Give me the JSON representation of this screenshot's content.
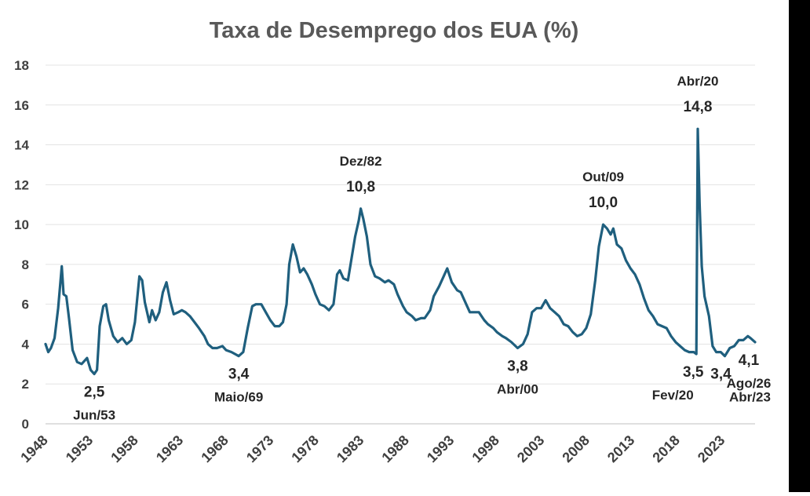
{
  "chart_data": {
    "type": "line",
    "title": "Taxa de Desemprego dos EUA (%)",
    "xlabel": "",
    "ylabel": "",
    "ylim": [
      0,
      18
    ],
    "yticks": [
      "0",
      "2",
      "4",
      "6",
      "8",
      "10",
      "12",
      "14",
      "16",
      "18"
    ],
    "xticks": [
      "1948",
      "1953",
      "1958",
      "1963",
      "1968",
      "1973",
      "1978",
      "1983",
      "1988",
      "1993",
      "1998",
      "2003",
      "2008",
      "2013",
      "2018",
      "2023"
    ],
    "xlim": [
      1948,
      2026.6
    ],
    "grid": "horizontal",
    "legend": "none",
    "line_color": "#1f5f7e",
    "series": [
      {
        "points": [
          [
            1948.0,
            4.0
          ],
          [
            1948.3,
            3.6
          ],
          [
            1948.6,
            3.8
          ],
          [
            1949.0,
            4.3
          ],
          [
            1949.4,
            5.8
          ],
          [
            1949.8,
            7.9
          ],
          [
            1950.0,
            6.5
          ],
          [
            1950.3,
            6.4
          ],
          [
            1950.6,
            5.3
          ],
          [
            1951.0,
            3.7
          ],
          [
            1951.5,
            3.1
          ],
          [
            1952.0,
            3.0
          ],
          [
            1952.6,
            3.3
          ],
          [
            1953.0,
            2.7
          ],
          [
            1953.4,
            2.5
          ],
          [
            1953.7,
            2.7
          ],
          [
            1954.0,
            4.9
          ],
          [
            1954.4,
            5.9
          ],
          [
            1954.7,
            6.0
          ],
          [
            1955.0,
            5.2
          ],
          [
            1955.5,
            4.4
          ],
          [
            1956.0,
            4.1
          ],
          [
            1956.5,
            4.3
          ],
          [
            1957.0,
            4.0
          ],
          [
            1957.5,
            4.2
          ],
          [
            1957.9,
            5.1
          ],
          [
            1958.4,
            7.4
          ],
          [
            1958.7,
            7.2
          ],
          [
            1959.0,
            6.1
          ],
          [
            1959.5,
            5.1
          ],
          [
            1959.8,
            5.7
          ],
          [
            1960.2,
            5.2
          ],
          [
            1960.6,
            5.6
          ],
          [
            1961.0,
            6.6
          ],
          [
            1961.4,
            7.1
          ],
          [
            1961.8,
            6.2
          ],
          [
            1962.2,
            5.5
          ],
          [
            1962.7,
            5.6
          ],
          [
            1963.1,
            5.7
          ],
          [
            1963.5,
            5.6
          ],
          [
            1964.0,
            5.4
          ],
          [
            1964.5,
            5.1
          ],
          [
            1965.0,
            4.8
          ],
          [
            1965.6,
            4.4
          ],
          [
            1966.0,
            4.0
          ],
          [
            1966.5,
            3.8
          ],
          [
            1967.0,
            3.8
          ],
          [
            1967.6,
            3.9
          ],
          [
            1968.0,
            3.7
          ],
          [
            1968.6,
            3.6
          ],
          [
            1969.0,
            3.5
          ],
          [
            1969.4,
            3.4
          ],
          [
            1969.9,
            3.6
          ],
          [
            1970.4,
            4.8
          ],
          [
            1970.9,
            5.9
          ],
          [
            1971.3,
            6.0
          ],
          [
            1971.9,
            6.0
          ],
          [
            1972.4,
            5.6
          ],
          [
            1972.9,
            5.2
          ],
          [
            1973.4,
            4.9
          ],
          [
            1973.9,
            4.9
          ],
          [
            1974.3,
            5.1
          ],
          [
            1974.7,
            6.0
          ],
          [
            1975.0,
            8.0
          ],
          [
            1975.4,
            9.0
          ],
          [
            1975.8,
            8.4
          ],
          [
            1976.2,
            7.6
          ],
          [
            1976.6,
            7.8
          ],
          [
            1977.0,
            7.5
          ],
          [
            1977.5,
            7.0
          ],
          [
            1977.9,
            6.5
          ],
          [
            1978.4,
            6.0
          ],
          [
            1978.9,
            5.9
          ],
          [
            1979.4,
            5.7
          ],
          [
            1979.9,
            6.0
          ],
          [
            1980.3,
            7.5
          ],
          [
            1980.6,
            7.7
          ],
          [
            1981.0,
            7.3
          ],
          [
            1981.5,
            7.2
          ],
          [
            1981.9,
            8.3
          ],
          [
            1982.3,
            9.4
          ],
          [
            1982.7,
            10.2
          ],
          [
            1982.92,
            10.8
          ],
          [
            1983.2,
            10.3
          ],
          [
            1983.6,
            9.4
          ],
          [
            1984.0,
            8.0
          ],
          [
            1984.5,
            7.4
          ],
          [
            1985.0,
            7.3
          ],
          [
            1985.6,
            7.1
          ],
          [
            1986.0,
            7.2
          ],
          [
            1986.6,
            7.0
          ],
          [
            1987.0,
            6.5
          ],
          [
            1987.6,
            5.9
          ],
          [
            1988.0,
            5.6
          ],
          [
            1988.6,
            5.4
          ],
          [
            1989.0,
            5.2
          ],
          [
            1989.6,
            5.3
          ],
          [
            1990.0,
            5.3
          ],
          [
            1990.6,
            5.7
          ],
          [
            1991.0,
            6.4
          ],
          [
            1991.6,
            6.9
          ],
          [
            1992.0,
            7.3
          ],
          [
            1992.5,
            7.8
          ],
          [
            1993.0,
            7.1
          ],
          [
            1993.6,
            6.7
          ],
          [
            1994.0,
            6.6
          ],
          [
            1994.6,
            6.0
          ],
          [
            1995.0,
            5.6
          ],
          [
            1995.6,
            5.6
          ],
          [
            1996.0,
            5.6
          ],
          [
            1996.6,
            5.2
          ],
          [
            1997.0,
            5.0
          ],
          [
            1997.6,
            4.8
          ],
          [
            1998.0,
            4.6
          ],
          [
            1998.6,
            4.4
          ],
          [
            1999.0,
            4.3
          ],
          [
            1999.6,
            4.1
          ],
          [
            2000.3,
            3.8
          ],
          [
            2000.9,
            4.0
          ],
          [
            2001.4,
            4.5
          ],
          [
            2001.9,
            5.6
          ],
          [
            2002.4,
            5.8
          ],
          [
            2002.9,
            5.8
          ],
          [
            2003.4,
            6.2
          ],
          [
            2003.9,
            5.8
          ],
          [
            2004.4,
            5.6
          ],
          [
            2004.9,
            5.4
          ],
          [
            2005.4,
            5.0
          ],
          [
            2005.9,
            4.9
          ],
          [
            2006.4,
            4.6
          ],
          [
            2006.9,
            4.4
          ],
          [
            2007.4,
            4.5
          ],
          [
            2007.9,
            4.8
          ],
          [
            2008.4,
            5.5
          ],
          [
            2008.9,
            7.2
          ],
          [
            2009.3,
            8.9
          ],
          [
            2009.78,
            10.0
          ],
          [
            2010.2,
            9.8
          ],
          [
            2010.6,
            9.5
          ],
          [
            2010.9,
            9.8
          ],
          [
            2011.3,
            9.0
          ],
          [
            2011.8,
            8.8
          ],
          [
            2012.3,
            8.2
          ],
          [
            2012.8,
            7.8
          ],
          [
            2013.3,
            7.5
          ],
          [
            2013.8,
            7.0
          ],
          [
            2014.3,
            6.3
          ],
          [
            2014.8,
            5.7
          ],
          [
            2015.3,
            5.4
          ],
          [
            2015.8,
            5.0
          ],
          [
            2016.3,
            4.9
          ],
          [
            2016.8,
            4.8
          ],
          [
            2017.3,
            4.4
          ],
          [
            2017.8,
            4.1
          ],
          [
            2018.3,
            3.9
          ],
          [
            2018.8,
            3.7
          ],
          [
            2019.3,
            3.6
          ],
          [
            2019.8,
            3.6
          ],
          [
            2020.1,
            3.5
          ],
          [
            2020.25,
            14.8
          ],
          [
            2020.45,
            11.1
          ],
          [
            2020.7,
            7.9
          ],
          [
            2021.0,
            6.4
          ],
          [
            2021.5,
            5.4
          ],
          [
            2021.9,
            3.9
          ],
          [
            2022.3,
            3.6
          ],
          [
            2022.8,
            3.6
          ],
          [
            2023.25,
            3.4
          ],
          [
            2023.8,
            3.8
          ],
          [
            2024.3,
            3.9
          ],
          [
            2024.8,
            4.2
          ],
          [
            2025.3,
            4.2
          ],
          [
            2025.8,
            4.4
          ],
          [
            2026.1,
            4.3
          ],
          [
            2026.6,
            4.1
          ]
        ]
      }
    ],
    "annotations": [
      {
        "date": "Jun/53",
        "value": "2,5",
        "x": 1953.4,
        "y": 2.5
      },
      {
        "date": "Maio/69",
        "value": "3,4",
        "x": 1969.4,
        "y": 3.4
      },
      {
        "date": "Dez/82",
        "value": "10,8",
        "x": 1982.92,
        "y": 10.8
      },
      {
        "date": "Abr/00",
        "value": "3,8",
        "x": 2000.3,
        "y": 3.8
      },
      {
        "date": "Out/09",
        "value": "10,0",
        "x": 2009.78,
        "y": 10.0
      },
      {
        "date": "Fev/20",
        "value": "3,5",
        "x": 2020.1,
        "y": 3.5
      },
      {
        "date": "Abr/20",
        "value": "14,8",
        "x": 2020.25,
        "y": 14.8
      },
      {
        "date": "Abr/23",
        "value": "3,4",
        "x": 2023.25,
        "y": 3.4
      },
      {
        "date": "Ago/26",
        "value": "4,1",
        "x": 2026.6,
        "y": 4.1
      }
    ]
  }
}
